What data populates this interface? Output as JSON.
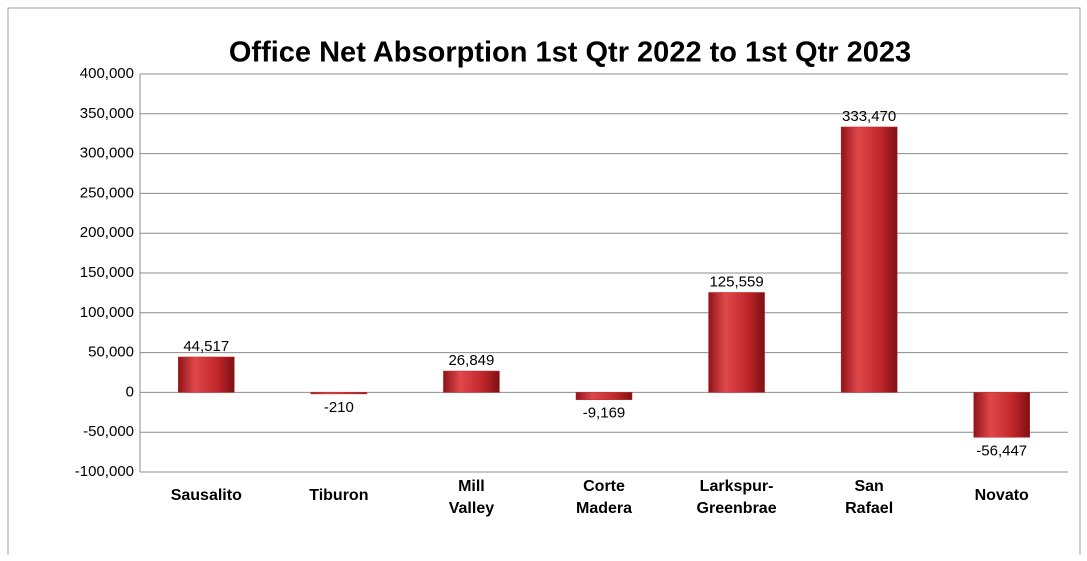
{
  "chart_data": {
    "type": "bar",
    "title": "Office Net Absorption  1st Qtr 2022 to 1st Qtr 2023",
    "categories": [
      "Sausalito",
      "Tiburon",
      "Mill Valley",
      "Corte Madera",
      "Larkspur-Greenbrae",
      "San Rafael",
      "Novato"
    ],
    "values": [
      44517,
      -210,
      26849,
      -9169,
      125559,
      333470,
      -56447
    ],
    "value_labels": [
      "44,517",
      "-210",
      "26,849",
      "-9,169",
      "125,559",
      "333,470",
      "-56,447"
    ],
    "color": "#c0262a",
    "ylim": [
      -100000,
      400000
    ],
    "yticks": [
      {
        "value": -100000,
        "label": "-100,000"
      },
      {
        "value": -50000,
        "label": "-50,000"
      },
      0,
      {
        "value": 50000,
        "label": "50,000"
      },
      {
        "value": 100000,
        "label": "100,000"
      },
      {
        "value": 150000,
        "label": "150,000"
      },
      {
        "value": 200000,
        "label": "200,000"
      },
      {
        "value": 250000,
        "label": "250,000"
      },
      {
        "value": 300000,
        "label": "300,000"
      },
      {
        "value": 350000,
        "label": "350,000"
      },
      {
        "value": 400000,
        "label": "400,000"
      }
    ],
    "grid": true
  }
}
